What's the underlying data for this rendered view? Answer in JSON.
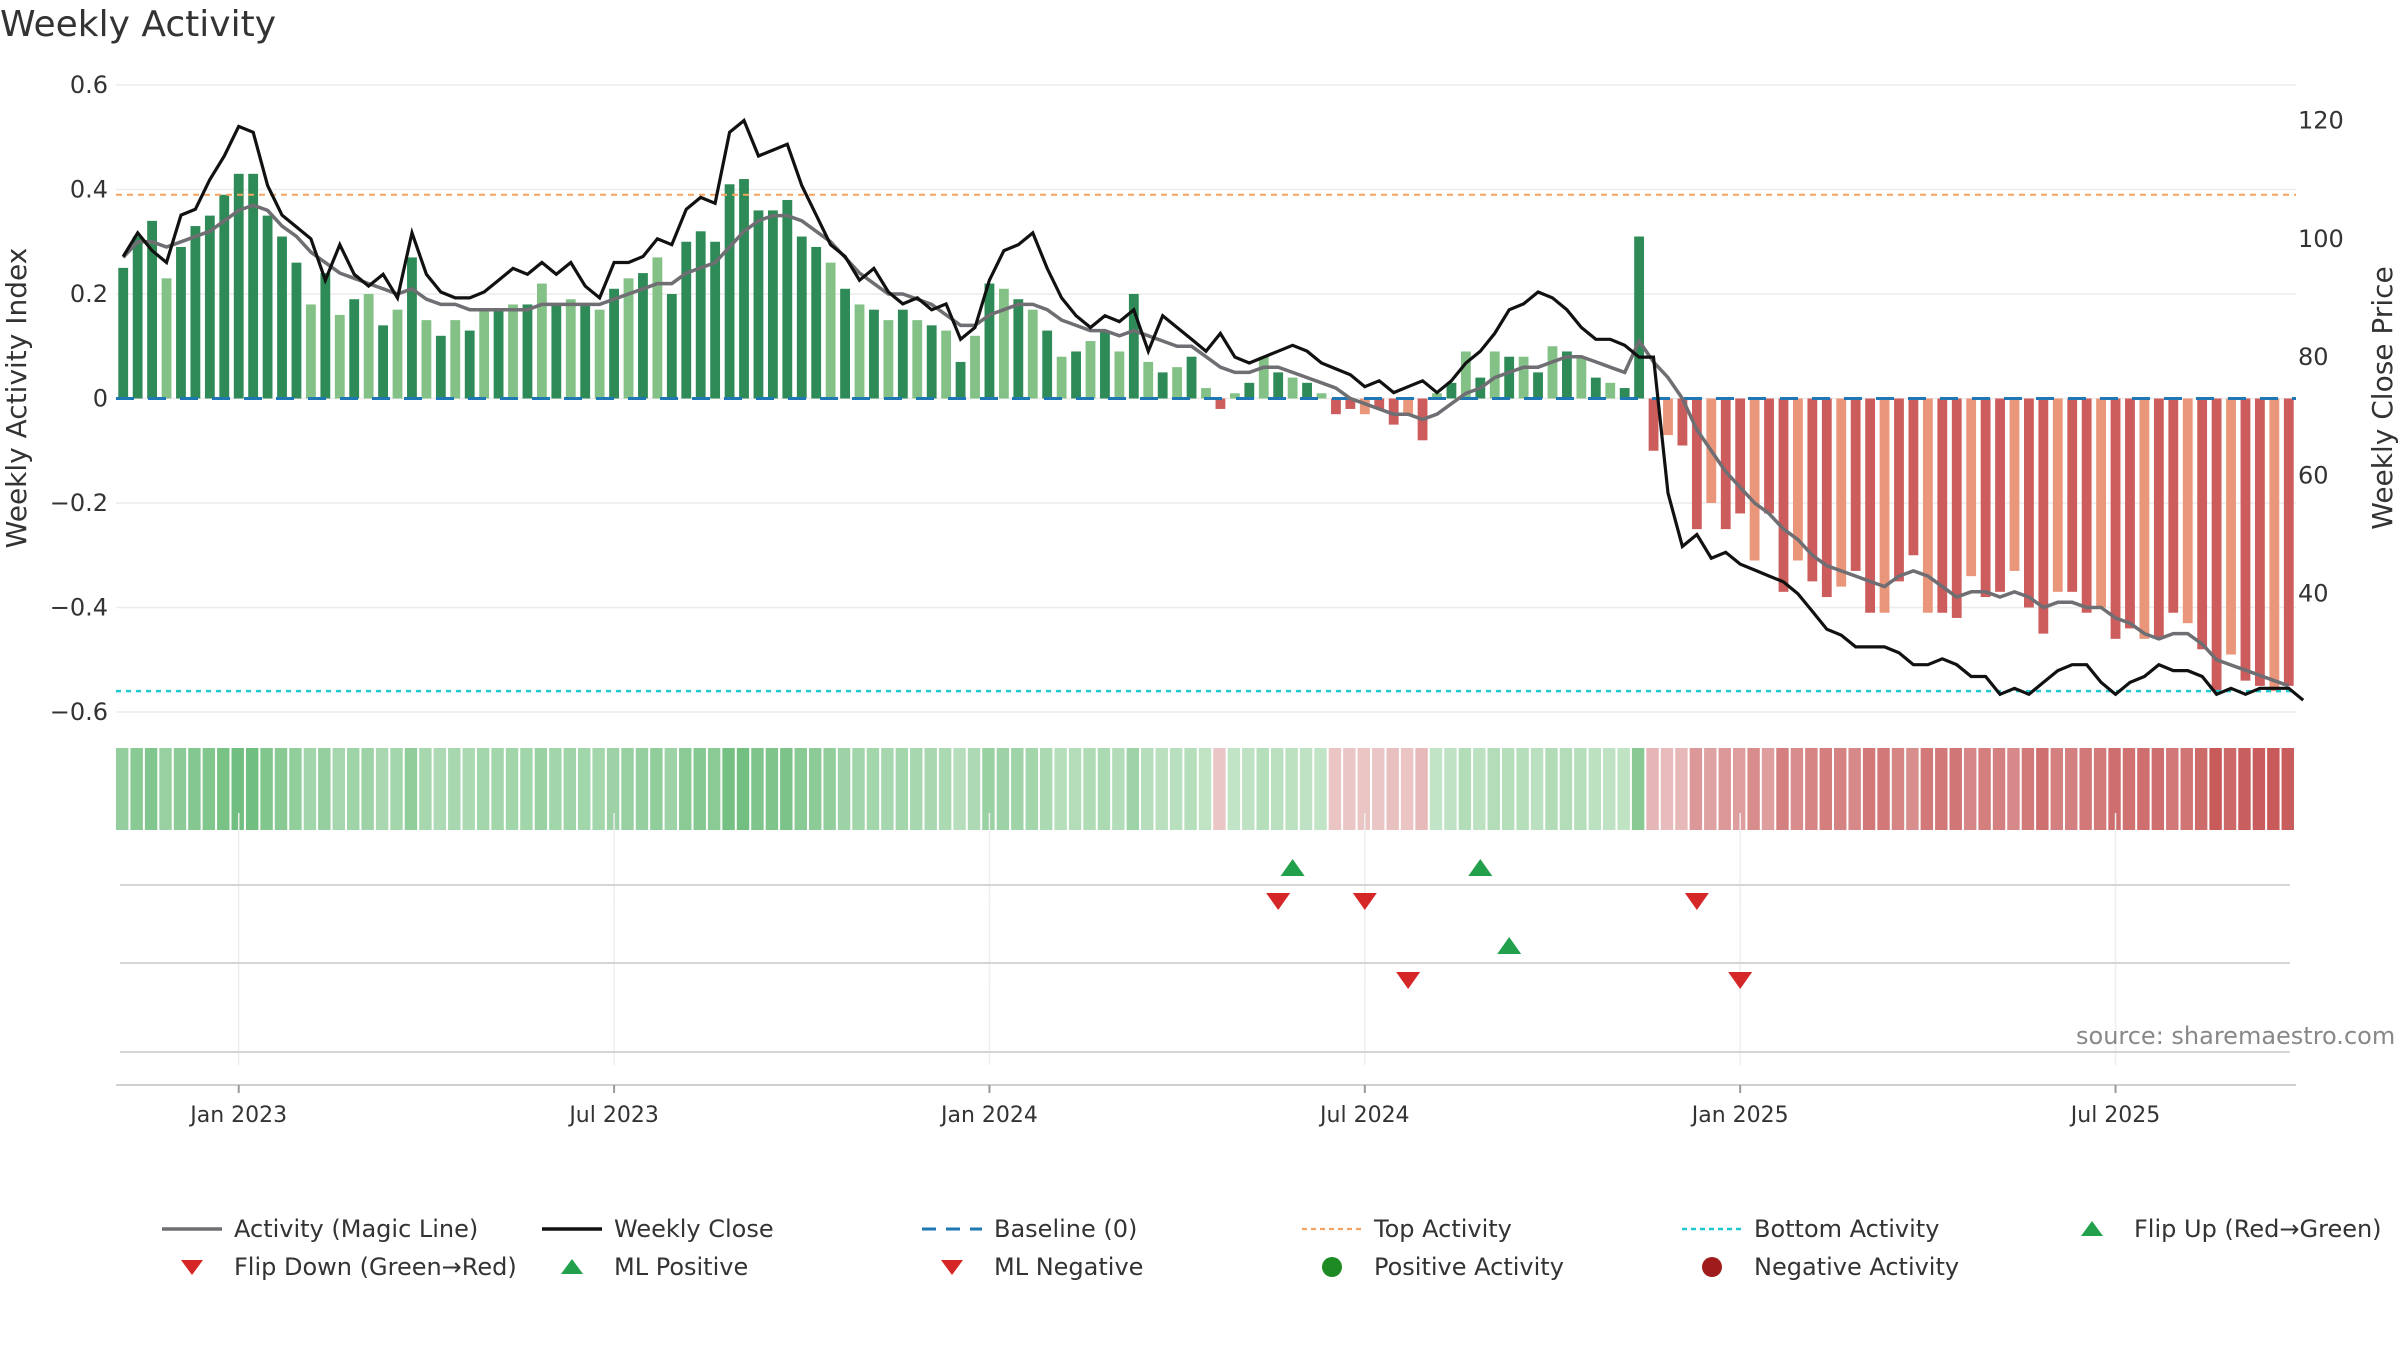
{
  "title": "Weekly Activity",
  "source": "source: sharemaestro.com",
  "colors": {
    "pos_dark": "#2e8b57",
    "pos_light": "#83c187",
    "neg_dark": "#cd5c5c",
    "neg_light": "#e9967a",
    "magic": "#6e6e73",
    "close": "#111111",
    "baseline": "#1f77b4",
    "top": "#f4a460",
    "bottom": "#20c9d0",
    "up_marker": "#22a04b",
    "down_marker": "#d62728"
  },
  "chart_data": {
    "type": "bar+line",
    "title": "Weekly Activity",
    "ylabel": "Weekly Activity Index",
    "ylabel_right": "Weekly Close Price",
    "ylim": [
      -0.6,
      0.6
    ],
    "ylim_right": [
      20,
      126
    ],
    "yticks": [
      "0.6",
      "0.4",
      "0.2",
      "0",
      "−0.2",
      "−0.4",
      "−0.6"
    ],
    "yticks_right": [
      "120",
      "100",
      "80",
      "60",
      "40"
    ],
    "xtick_labels": [
      "Jan 2023",
      "Jul 2023",
      "Jan 2024",
      "Jul 2024",
      "Jan 2025",
      "Jul 2025"
    ],
    "top_activity": 0.39,
    "bottom_activity": -0.56,
    "activity": [
      0.25,
      0.31,
      0.34,
      0.23,
      0.29,
      0.33,
      0.35,
      0.39,
      0.43,
      0.43,
      0.35,
      0.31,
      0.26,
      0.18,
      0.24,
      0.16,
      0.19,
      0.2,
      0.14,
      0.17,
      0.27,
      0.15,
      0.12,
      0.15,
      0.13,
      0.17,
      0.17,
      0.18,
      0.18,
      0.22,
      0.18,
      0.19,
      0.18,
      0.17,
      0.21,
      0.23,
      0.24,
      0.27,
      0.2,
      0.3,
      0.32,
      0.3,
      0.41,
      0.42,
      0.36,
      0.36,
      0.38,
      0.31,
      0.29,
      0.26,
      0.21,
      0.18,
      0.17,
      0.15,
      0.17,
      0.15,
      0.14,
      0.13,
      0.07,
      0.12,
      0.22,
      0.21,
      0.19,
      0.17,
      0.13,
      0.08,
      0.09,
      0.11,
      0.13,
      0.09,
      0.2,
      0.07,
      0.05,
      0.06,
      0.08,
      0.02,
      -0.02,
      0.01,
      0.03,
      0.08,
      0.05,
      0.04,
      0.03,
      0.01,
      -0.03,
      -0.02,
      -0.03,
      -0.02,
      -0.05,
      -0.03,
      -0.08,
      0.01,
      0.03,
      0.09,
      0.04,
      0.09,
      0.08,
      0.08,
      0.05,
      0.1,
      0.09,
      0.08,
      0.04,
      0.03,
      0.02,
      0.31,
      -0.1,
      -0.07,
      -0.09,
      -0.25,
      -0.2,
      -0.25,
      -0.22,
      -0.31,
      -0.22,
      -0.37,
      -0.31,
      -0.35,
      -0.38,
      -0.36,
      -0.33,
      -0.41,
      -0.41,
      -0.35,
      -0.3,
      -0.41,
      -0.41,
      -0.42,
      -0.34,
      -0.38,
      -0.37,
      -0.33,
      -0.4,
      -0.45,
      -0.37,
      -0.37,
      -0.41,
      -0.4,
      -0.46,
      -0.44,
      -0.46,
      -0.46,
      -0.41,
      -0.43,
      -0.48,
      -0.56,
      -0.49,
      -0.54,
      -0.55,
      -0.56,
      -0.55
    ],
    "magic_line": [
      0.27,
      0.3,
      0.3,
      0.29,
      0.3,
      0.31,
      0.32,
      0.34,
      0.36,
      0.37,
      0.36,
      0.33,
      0.31,
      0.28,
      0.26,
      0.24,
      0.23,
      0.22,
      0.21,
      0.2,
      0.21,
      0.19,
      0.18,
      0.18,
      0.17,
      0.17,
      0.17,
      0.17,
      0.17,
      0.18,
      0.18,
      0.18,
      0.18,
      0.18,
      0.19,
      0.2,
      0.21,
      0.22,
      0.22,
      0.24,
      0.25,
      0.26,
      0.29,
      0.32,
      0.34,
      0.35,
      0.35,
      0.34,
      0.32,
      0.3,
      0.27,
      0.24,
      0.22,
      0.2,
      0.2,
      0.19,
      0.18,
      0.16,
      0.14,
      0.14,
      0.16,
      0.17,
      0.18,
      0.18,
      0.17,
      0.15,
      0.14,
      0.13,
      0.13,
      0.12,
      0.13,
      0.12,
      0.11,
      0.1,
      0.1,
      0.08,
      0.06,
      0.05,
      0.05,
      0.06,
      0.06,
      0.05,
      0.04,
      0.03,
      0.02,
      0.0,
      -0.01,
      -0.02,
      -0.03,
      -0.03,
      -0.04,
      -0.03,
      -0.01,
      0.01,
      0.02,
      0.04,
      0.05,
      0.06,
      0.06,
      0.07,
      0.08,
      0.08,
      0.07,
      0.06,
      0.05,
      0.11,
      0.07,
      0.04,
      0.0,
      -0.06,
      -0.1,
      -0.14,
      -0.17,
      -0.2,
      -0.22,
      -0.25,
      -0.27,
      -0.3,
      -0.32,
      -0.33,
      -0.34,
      -0.35,
      -0.36,
      -0.34,
      -0.33,
      -0.34,
      -0.36,
      -0.38,
      -0.37,
      -0.37,
      -0.38,
      -0.37,
      -0.38,
      -0.4,
      -0.39,
      -0.39,
      -0.4,
      -0.4,
      -0.42,
      -0.43,
      -0.45,
      -0.46,
      -0.45,
      -0.45,
      -0.47,
      -0.5,
      -0.51,
      -0.52,
      -0.53,
      -0.54,
      -0.55
    ],
    "weekly_close": [
      97,
      101,
      98,
      96,
      104,
      105,
      110,
      114,
      119,
      118,
      109,
      104,
      102,
      100,
      93,
      99,
      94,
      92,
      94,
      90,
      101,
      94,
      91,
      90,
      90,
      91,
      93,
      95,
      94,
      96,
      94,
      96,
      92,
      90,
      96,
      96,
      97,
      100,
      99,
      105,
      107,
      106,
      118,
      120,
      114,
      115,
      116,
      109,
      104,
      99,
      97,
      93,
      95,
      91,
      89,
      90,
      88,
      89,
      83,
      85,
      93,
      98,
      99,
      101,
      95,
      90,
      87,
      85,
      87,
      86,
      88,
      81,
      87,
      85,
      83,
      81,
      84,
      80,
      79,
      80,
      81,
      82,
      81,
      79,
      78,
      77,
      75,
      76,
      74,
      75,
      76,
      74,
      76,
      79,
      81,
      84,
      88,
      89,
      91,
      90,
      88,
      85,
      83,
      83,
      82,
      80,
      80,
      57,
      48,
      50,
      46,
      47,
      45,
      44,
      43,
      42,
      40,
      37,
      34,
      33,
      31,
      31,
      31,
      30,
      28,
      28,
      29,
      28,
      26,
      26,
      23,
      24,
      23,
      25,
      27,
      28,
      28,
      25,
      23,
      25,
      26,
      28,
      27,
      27,
      26,
      23,
      24,
      23,
      24,
      24,
      24,
      22
    ],
    "xtick_index": [
      8,
      34,
      60,
      86,
      112,
      138
    ],
    "flip_up_idx": [
      81,
      94
    ],
    "flip_down_idx": [
      80,
      86,
      109
    ],
    "ml_positive_idx": [
      96
    ],
    "ml_negative_idx": [
      89,
      112
    ],
    "legend": [
      {
        "label": "Activity (Magic Line)",
        "kind": "line-magic"
      },
      {
        "label": "Weekly Close",
        "kind": "line-close"
      },
      {
        "label": "Baseline (0)",
        "kind": "line-baseline"
      },
      {
        "label": "Top Activity",
        "kind": "line-top"
      },
      {
        "label": "Bottom Activity",
        "kind": "line-bottom"
      },
      {
        "label": "Flip Up (Red→Green)",
        "kind": "tri-up"
      },
      {
        "label": "Flip Down (Green→Red)",
        "kind": "tri-down"
      },
      {
        "label": "ML Positive",
        "kind": "tri-up"
      },
      {
        "label": "ML Negative",
        "kind": "tri-down"
      },
      {
        "label": "Positive Activity",
        "kind": "dot-pos"
      },
      {
        "label": "Negative Activity",
        "kind": "dot-neg"
      }
    ]
  }
}
